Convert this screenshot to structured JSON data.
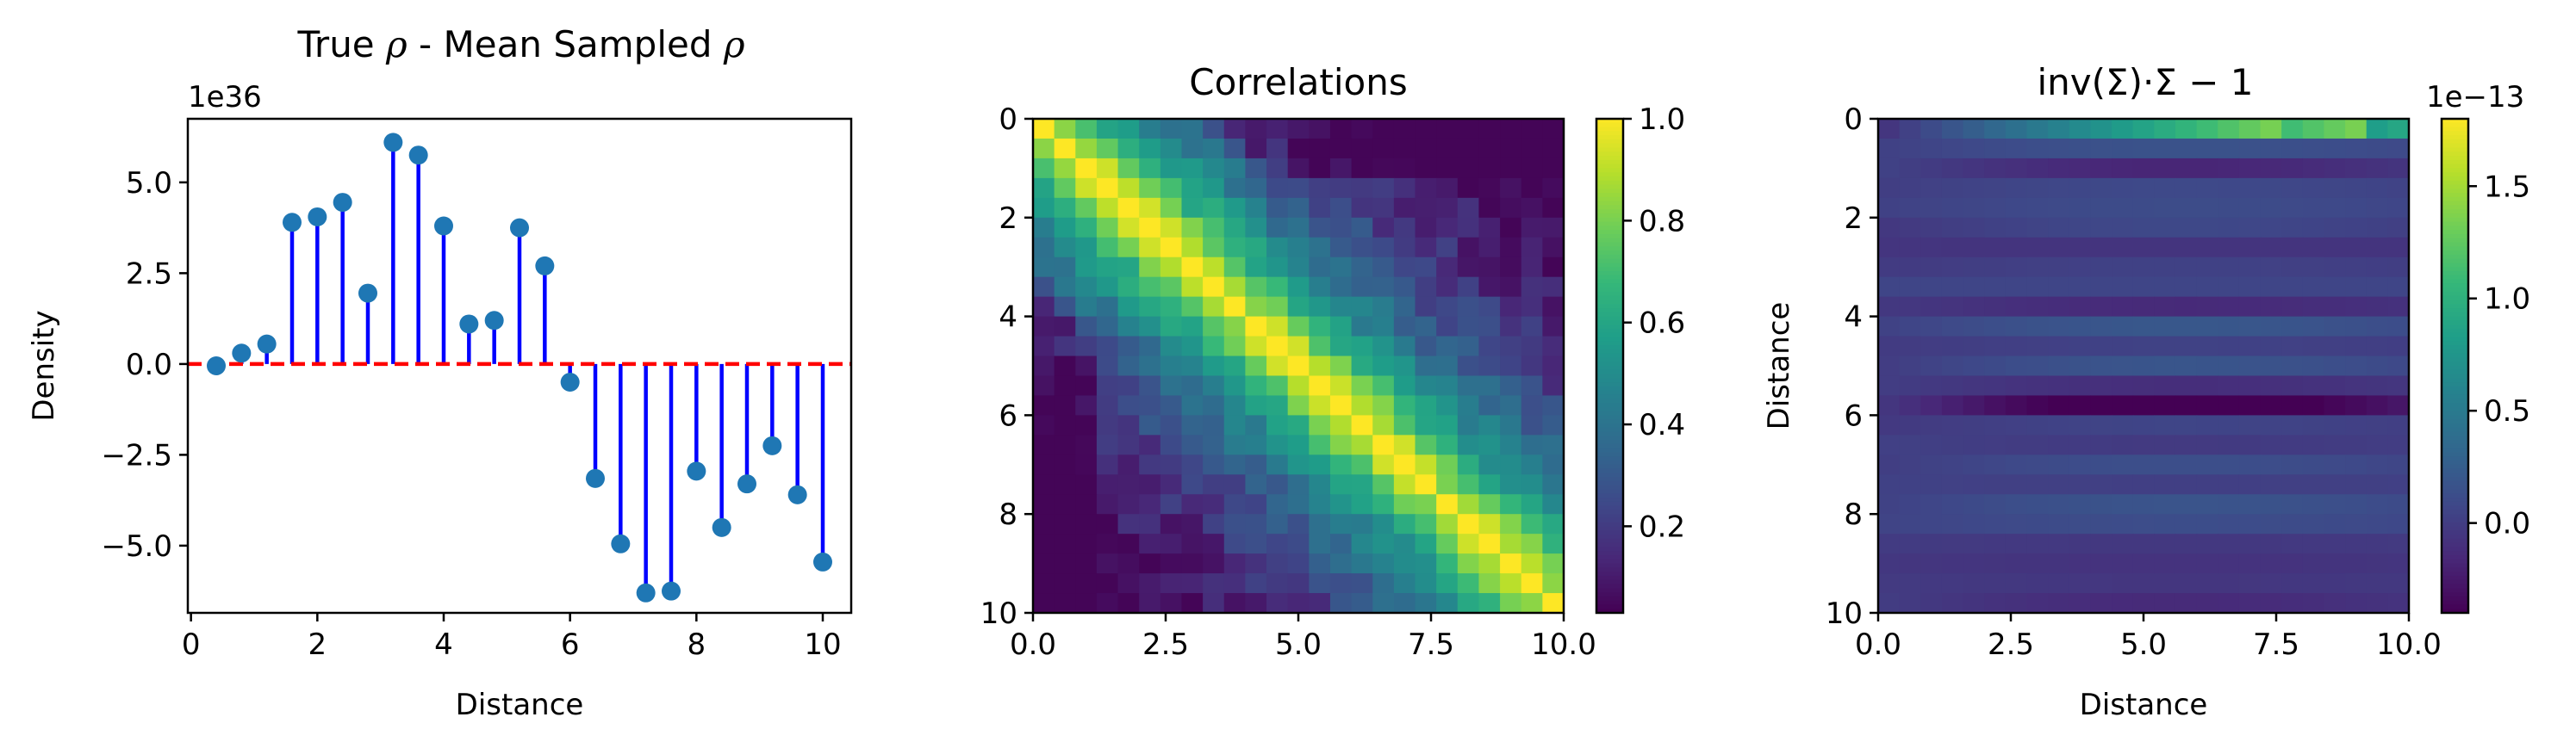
{
  "chart_data": [
    {
      "type": "stem",
      "title_parts": [
        "True ",
        "ρ",
        " - Mean Sampled ",
        "ρ"
      ],
      "title_italic": [
        false,
        true,
        false,
        true
      ],
      "xlabel": "Distance",
      "ylabel": "Density",
      "y_offset_label": "1e36",
      "xlim": [
        -0.05,
        10.45
      ],
      "ylim": [
        -6.85,
        6.75
      ],
      "xticks": [
        0,
        2,
        4,
        6,
        8,
        10
      ],
      "xtick_labels": [
        "0",
        "2",
        "4",
        "6",
        "8",
        "10"
      ],
      "yticks": [
        -5.0,
        -2.5,
        0.0,
        2.5,
        5.0
      ],
      "ytick_labels": [
        "−5.0",
        "−2.5",
        "0.0",
        "2.5",
        "5.0"
      ],
      "baseline": 0,
      "baseline_color": "#ff0000",
      "stem_color": "#0000ff",
      "marker_color": "#1f77b4",
      "x": [
        0.4,
        0.8,
        1.2,
        1.6,
        2.0,
        2.4,
        2.8,
        3.2,
        3.6,
        4.0,
        4.4,
        4.8,
        5.2,
        5.6,
        6.0,
        6.4,
        6.8,
        7.2,
        7.6,
        8.0,
        8.4,
        8.8,
        9.2,
        9.6,
        10.0
      ],
      "y": [
        -0.05,
        0.3,
        0.55,
        3.9,
        4.05,
        4.45,
        1.95,
        6.1,
        5.75,
        3.8,
        1.1,
        1.2,
        3.75,
        2.7,
        -0.5,
        -3.15,
        -4.95,
        -6.3,
        -6.25,
        -2.95,
        -4.5,
        -3.3,
        -2.25,
        -3.6,
        -5.45
      ]
    },
    {
      "type": "heatmap",
      "title": "Correlations",
      "xlim": [
        0,
        10
      ],
      "ylim": [
        10,
        0
      ],
      "xticks": [
        0,
        2.5,
        5,
        7.5,
        10
      ],
      "xtick_labels": [
        "0.0",
        "2.5",
        "5.0",
        "7.5",
        "10.0"
      ],
      "yticks": [
        0,
        2,
        4,
        6,
        8,
        10
      ],
      "ytick_labels": [
        "0",
        "2",
        "4",
        "6",
        "8",
        "10"
      ],
      "grid_size": 25,
      "colormap": "viridis",
      "vmin": 0.03,
      "vmax": 1.0,
      "colorbar_ticks": [
        0.2,
        0.4,
        0.6,
        0.8,
        1.0
      ],
      "colorbar_tick_labels": [
        "0.2",
        "0.4",
        "0.6",
        "0.8",
        "1.0"
      ],
      "structure": "symmetric correlation matrix, value ≈ exp(-|i-j|/7) with small noise, diagonal = 1.0"
    },
    {
      "type": "heatmap",
      "title": "inv(Σ)·Σ − 1",
      "xlabel": "Distance",
      "ylabel": "Distance",
      "xlim": [
        0,
        10
      ],
      "ylim": [
        10,
        0
      ],
      "xticks": [
        0,
        2.5,
        5,
        7.5,
        10
      ],
      "xtick_labels": [
        "0.0",
        "2.5",
        "5.0",
        "7.5",
        "10.0"
      ],
      "yticks": [
        0,
        2,
        4,
        6,
        8,
        10
      ],
      "ytick_labels": [
        "0",
        "2",
        "4",
        "6",
        "8",
        "10"
      ],
      "grid_size": 25,
      "colormap": "viridis",
      "vmin": -0.4,
      "vmax": 1.8,
      "colorbar_offset_label": "1e−13",
      "colorbar_ticks": [
        0.0,
        0.5,
        1.0,
        1.5
      ],
      "colorbar_tick_labels": [
        "0.0",
        "0.5",
        "1.0",
        "1.5"
      ],
      "structure": "mostly ≈0 with horizontal row-wise stripes; row 0 bright toward the right (up to ~1.8), row at 6 dark (~-0.35)"
    }
  ]
}
